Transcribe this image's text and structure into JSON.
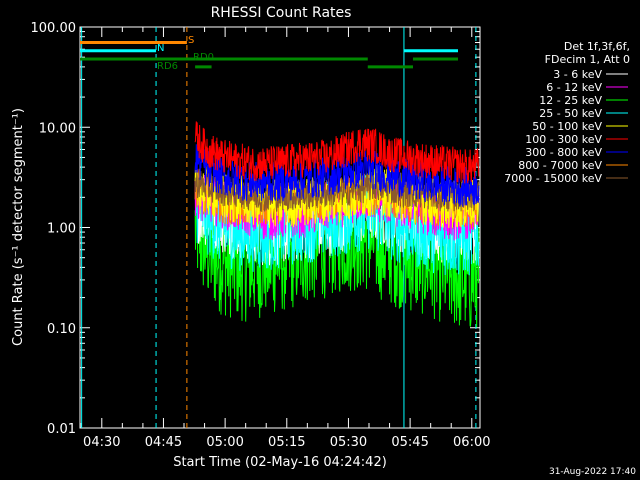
{
  "chart_data": {
    "type": "line",
    "title": "RHESSI Count Rates",
    "xlabel": "Start Time (02-May-16 04:24:42)",
    "ylabel": "Count Rate (s⁻¹ detector segment⁻¹)",
    "yscale": "log",
    "ylim": [
      0.01,
      100
    ],
    "xlim_minutes": [
      0,
      97.3
    ],
    "x_ticks": [
      "04:30",
      "04:45",
      "05:00",
      "05:15",
      "05:30",
      "05:45",
      "06:00"
    ],
    "x_tick_minutes": [
      5.3,
      20.3,
      35.3,
      50.3,
      65.3,
      80.3,
      95.3
    ],
    "y_ticks": [
      "0.01",
      "0.10",
      "1.00",
      "10.00",
      "100.00"
    ],
    "y_tick_values": [
      0.01,
      0.1,
      1,
      10,
      100
    ],
    "legend_header": [
      "Det 1f,3f,6f,",
      "FDecim 1, Att 0"
    ],
    "legend_position": "right",
    "series": [
      {
        "name": "3 - 6 keV",
        "color": "#ffffff",
        "minutes": [
          28,
          35,
          45,
          55,
          62,
          70,
          80,
          90,
          97
        ],
        "values": [
          1.6,
          1.2,
          0.9,
          1.0,
          1.2,
          1.6,
          1.2,
          0.9,
          1.0
        ]
      },
      {
        "name": "6 - 12 keV",
        "color": "#ff00ff",
        "minutes": [
          28,
          35,
          45,
          55,
          62,
          70,
          80,
          90,
          97
        ],
        "values": [
          2.2,
          1.7,
          1.3,
          1.4,
          1.7,
          2.1,
          1.6,
          1.3,
          1.4
        ]
      },
      {
        "name": "12 - 25 keV",
        "color": "#00ff00",
        "minutes": [
          28,
          31,
          35,
          40,
          45,
          50,
          55,
          60,
          65,
          70,
          75,
          80,
          85,
          90,
          95,
          97
        ],
        "values": [
          1.0,
          0.6,
          0.45,
          0.4,
          0.45,
          0.5,
          0.6,
          0.7,
          0.8,
          0.8,
          0.6,
          0.5,
          0.45,
          0.35,
          0.3,
          0.35
        ]
      },
      {
        "name": "25 - 50 keV",
        "color": "#00ffff",
        "minutes": [
          28,
          31,
          35,
          40,
          45,
          50,
          55,
          60,
          65,
          70,
          75,
          80,
          85,
          90,
          95,
          97
        ],
        "values": [
          1.8,
          1.3,
          1.0,
          0.9,
          0.9,
          1.0,
          1.1,
          1.2,
          1.3,
          1.5,
          1.2,
          1.0,
          0.9,
          0.8,
          0.8,
          0.9
        ]
      },
      {
        "name": "50 - 100 keV",
        "color": "#ffff00",
        "minutes": [
          28,
          35,
          45,
          55,
          65,
          72,
          80,
          90,
          97
        ],
        "values": [
          2.5,
          2.0,
          1.7,
          1.8,
          2.0,
          2.4,
          2.0,
          1.7,
          1.8
        ]
      },
      {
        "name": "100 - 300 keV",
        "color": "#ff0000",
        "minutes": [
          28,
          31,
          35,
          40,
          45,
          50,
          55,
          60,
          65,
          68,
          72,
          75,
          80,
          85,
          90,
          95,
          97
        ],
        "values": [
          8.0,
          6.0,
          5.0,
          4.5,
          4.3,
          4.5,
          4.8,
          5.0,
          6.0,
          7.0,
          6.5,
          5.5,
          5.0,
          4.6,
          4.3,
          4.0,
          4.2
        ]
      },
      {
        "name": "300 - 800 keV",
        "color": "#0000ff",
        "minutes": [
          28,
          31,
          35,
          40,
          45,
          50,
          55,
          60,
          65,
          70,
          75,
          80,
          85,
          90,
          95,
          97
        ],
        "values": [
          5.0,
          3.8,
          3.2,
          2.9,
          2.8,
          2.9,
          3.0,
          3.2,
          3.6,
          3.9,
          3.4,
          3.0,
          2.8,
          2.6,
          2.5,
          2.6
        ]
      },
      {
        "name": "800 - 7000 keV",
        "color": "#ff8800",
        "minutes": [
          28,
          31,
          35,
          40,
          45,
          50,
          55,
          60,
          65,
          70,
          75,
          80,
          85,
          90,
          95,
          97
        ],
        "values": [
          2.5,
          2.0,
          1.8,
          1.7,
          1.7,
          1.8,
          1.9,
          2.0,
          2.1,
          2.2,
          2.0,
          1.8,
          1.7,
          1.6,
          1.6,
          1.7
        ]
      },
      {
        "name": "7000 - 15000 keV",
        "color": "#8b5a2b",
        "minutes": [
          28,
          35,
          45,
          55,
          65,
          72,
          80,
          90,
          97
        ],
        "values": [
          2.8,
          2.3,
          2.0,
          2.1,
          2.3,
          2.6,
          2.2,
          2.0,
          2.1
        ]
      }
    ],
    "vertical_lines": [
      {
        "minute": 0.4,
        "color": "#00ffff",
        "style": "solid"
      },
      {
        "minute": 18.5,
        "color": "#00ffff",
        "style": "dashed"
      },
      {
        "minute": 26.0,
        "color": "#ff8800",
        "style": "dashed"
      },
      {
        "minute": 78.8,
        "color": "#00ffff",
        "style": "solid"
      },
      {
        "minute": 96.3,
        "color": "#00ffff",
        "style": "dashed"
      }
    ],
    "status_bars": [
      {
        "label": "S",
        "color": "#ff8800",
        "segments": [
          [
            0,
            26
          ]
        ],
        "value": 70
      },
      {
        "label": "N",
        "color": "#00ffff",
        "segments": [
          [
            0,
            18.5
          ],
          [
            78.8,
            97
          ]
        ],
        "value": 58
      },
      {
        "label": "RD0",
        "color": "#008800",
        "segments": [
          [
            0,
            28
          ],
          [
            28,
            70
          ],
          [
            81,
            97
          ]
        ],
        "value": 48
      },
      {
        "label": "RD6",
        "color": "#008800",
        "segments": [
          [
            28,
            32
          ],
          [
            70,
            81
          ]
        ],
        "value": 40
      }
    ],
    "timestamp": "31-Aug-2022 17:40"
  }
}
